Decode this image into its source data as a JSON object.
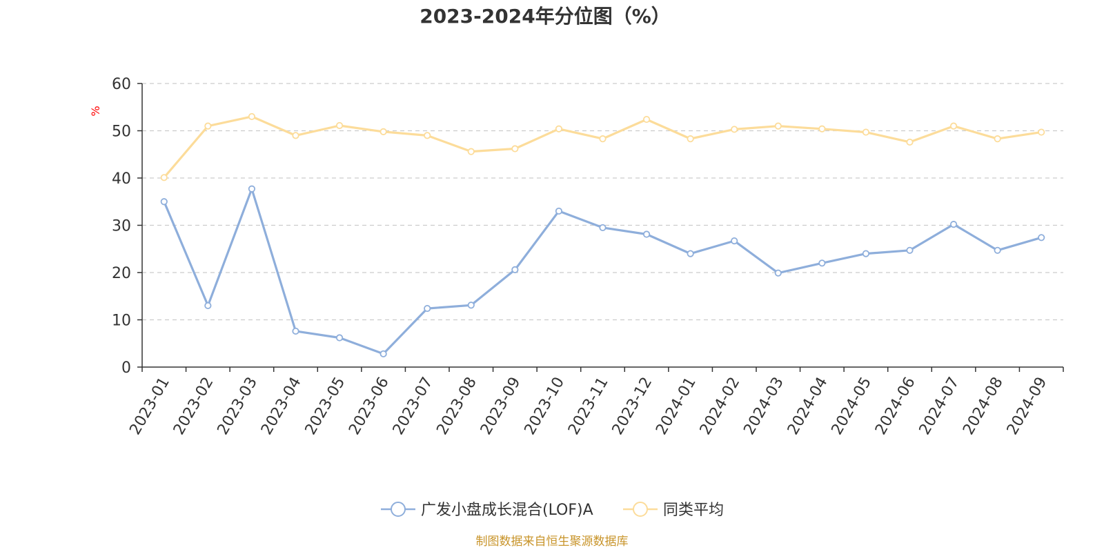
{
  "chart_data": {
    "type": "line",
    "title": "2023-2024年分位图（%）",
    "ylabel": "%",
    "ylim": [
      0,
      60
    ],
    "yticks": [
      "0",
      "10",
      "20",
      "30",
      "40",
      "50",
      "60"
    ],
    "grid": true,
    "legend_position": "bottom",
    "categories": [
      "2023-01",
      "2023-02",
      "2023-03",
      "2023-04",
      "2023-05",
      "2023-06",
      "2023-07",
      "2023-08",
      "2023-09",
      "2023-10",
      "2023-11",
      "2023-12",
      "2024-01",
      "2024-02",
      "2024-03",
      "2024-04",
      "2024-05",
      "2024-06",
      "2024-07",
      "2024-08",
      "2024-09"
    ],
    "series": [
      {
        "name": "广发小盘成长混合(LOF)A",
        "color": "#8eaedb",
        "values": [
          35.0,
          13.0,
          37.7,
          7.6,
          6.2,
          2.8,
          12.4,
          13.1,
          20.6,
          33.0,
          29.5,
          28.1,
          24.0,
          26.7,
          19.9,
          22.0,
          24.0,
          24.7,
          30.2,
          24.7,
          27.4
        ]
      },
      {
        "name": "同类平均",
        "color": "#fcdc9a",
        "values": [
          40.1,
          51.0,
          53.0,
          49.0,
          51.1,
          49.8,
          49.0,
          45.6,
          46.2,
          50.4,
          48.3,
          52.4,
          48.3,
          50.3,
          51.0,
          50.4,
          49.7,
          47.6,
          51.0,
          48.3,
          49.7
        ]
      }
    ]
  },
  "ylabel_color": "#ff0000",
  "source": {
    "text": "制图数据来自恒生聚源数据库",
    "color": "#c8942a"
  }
}
